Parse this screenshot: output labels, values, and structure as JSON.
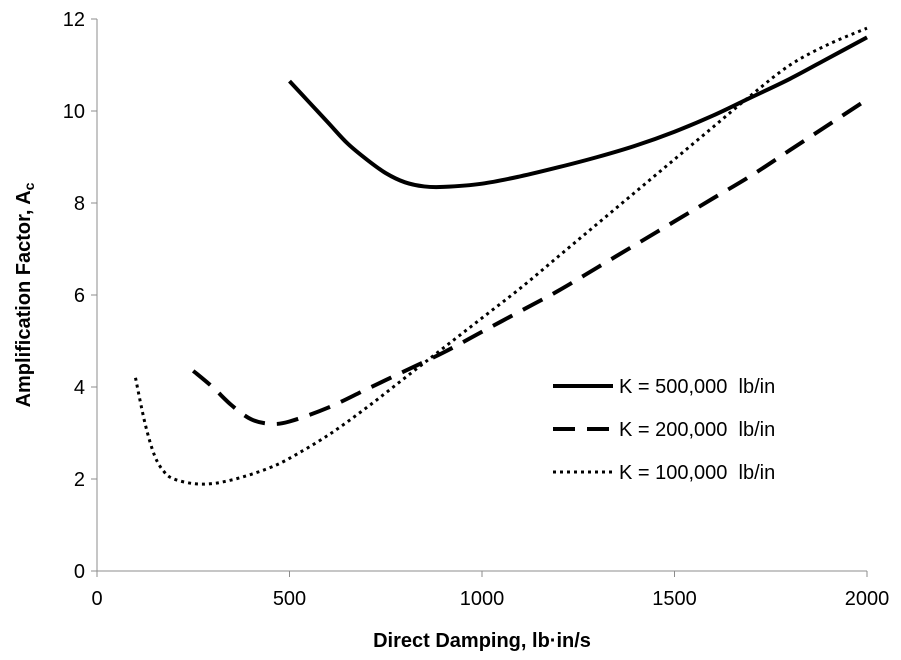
{
  "chart_data": {
    "type": "line",
    "title": "",
    "xlabel": "Direct Damping, lb·in/s",
    "ylabel": "Amplification Factor, A",
    "ylabel_subscript": "c",
    "xlim": [
      0,
      2000
    ],
    "ylim": [
      0,
      12
    ],
    "x_ticks": [
      0,
      500,
      1000,
      1500,
      2000
    ],
    "y_ticks": [
      0,
      2,
      4,
      6,
      8,
      10,
      12
    ],
    "grid": false,
    "legend_position": "right",
    "series": [
      {
        "name": "K = 500,000  lb/in",
        "style": "solid",
        "color": "#000000",
        "x": [
          500,
          550,
          600,
          650,
          700,
          750,
          800,
          850,
          900,
          1000,
          1100,
          1200,
          1300,
          1400,
          1500,
          1600,
          1700,
          1800,
          1900,
          2000
        ],
        "y": [
          10.65,
          10.2,
          9.75,
          9.3,
          8.95,
          8.65,
          8.45,
          8.36,
          8.35,
          8.42,
          8.58,
          8.78,
          9.0,
          9.25,
          9.55,
          9.9,
          10.3,
          10.7,
          11.15,
          11.6
        ]
      },
      {
        "name": "K = 200,000  lb/in",
        "style": "dashed",
        "color": "#000000",
        "x": [
          250,
          300,
          350,
          400,
          450,
          500,
          600,
          700,
          800,
          900,
          1000,
          1100,
          1200,
          1300,
          1400,
          1500,
          1600,
          1700,
          1800,
          1900,
          2000
        ],
        "y": [
          4.35,
          4.0,
          3.6,
          3.3,
          3.2,
          3.25,
          3.55,
          3.95,
          4.35,
          4.75,
          5.2,
          5.65,
          6.1,
          6.6,
          7.1,
          7.6,
          8.1,
          8.6,
          9.15,
          9.7,
          10.25
        ]
      },
      {
        "name": "K = 100,000  lb/in",
        "style": "dotted",
        "color": "#000000",
        "x": [
          100,
          125,
          150,
          175,
          200,
          250,
          300,
          350,
          400,
          450,
          500,
          600,
          700,
          800,
          900,
          1000,
          1100,
          1200,
          1300,
          1400,
          1500,
          1600,
          1700,
          1800,
          1900,
          2000
        ],
        "y": [
          4.2,
          3.2,
          2.5,
          2.15,
          2.0,
          1.9,
          1.9,
          1.98,
          2.1,
          2.25,
          2.45,
          2.95,
          3.55,
          4.2,
          4.85,
          5.5,
          6.15,
          6.85,
          7.55,
          8.25,
          8.95,
          9.65,
          10.35,
          11.0,
          11.45,
          11.8
        ]
      }
    ]
  }
}
